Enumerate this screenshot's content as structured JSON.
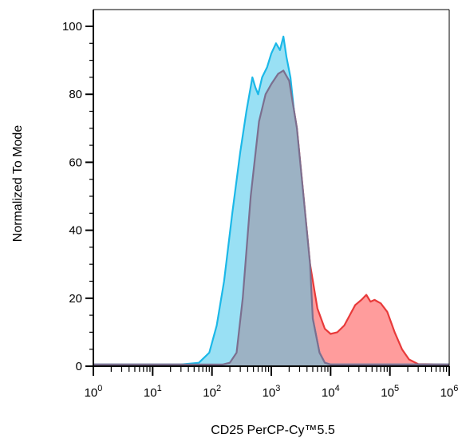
{
  "chart_data": {
    "type": "area",
    "title": "",
    "xlabel": "CD25 PerCP-Cy™5.5",
    "ylabel": "Normalized To Mode",
    "x_scale": "log",
    "xlim": [
      1,
      1000000
    ],
    "ylim": [
      0,
      100
    ],
    "y_ticks": [
      0,
      20,
      40,
      60,
      80,
      100
    ],
    "x_ticks": [
      {
        "base": "10",
        "exp": "0",
        "value": 1
      },
      {
        "base": "10",
        "exp": "1",
        "value": 10
      },
      {
        "base": "10",
        "exp": "2",
        "value": 100
      },
      {
        "base": "10",
        "exp": "3",
        "value": 1000
      },
      {
        "base": "10",
        "exp": "4",
        "value": 10000
      },
      {
        "base": "10",
        "exp": "5",
        "value": 100000
      },
      {
        "base": "10",
        "exp": "6",
        "value": 1000000
      }
    ],
    "grid": false,
    "legend": "none",
    "series": [
      {
        "color_fill": "#ff9c9c",
        "color_line": "#e83a3a",
        "points": [
          [
            1,
            0.5
          ],
          [
            100,
            0.5
          ],
          [
            150,
            0.5
          ],
          [
            200,
            1
          ],
          [
            260,
            4
          ],
          [
            330,
            20
          ],
          [
            450,
            50
          ],
          [
            620,
            72
          ],
          [
            800,
            80
          ],
          [
            1000,
            83
          ],
          [
            1300,
            86
          ],
          [
            1600,
            87
          ],
          [
            2000,
            84
          ],
          [
            2700,
            70
          ],
          [
            3500,
            50
          ],
          [
            4500,
            30
          ],
          [
            6000,
            17
          ],
          [
            8000,
            11
          ],
          [
            10000,
            9.5
          ],
          [
            13000,
            10
          ],
          [
            17000,
            12
          ],
          [
            21000,
            15
          ],
          [
            26000,
            18
          ],
          [
            33000,
            19.5
          ],
          [
            40000,
            21
          ],
          [
            47000,
            19
          ],
          [
            55000,
            19.5
          ],
          [
            70000,
            18.5
          ],
          [
            90000,
            16
          ],
          [
            120000,
            10
          ],
          [
            160000,
            5
          ],
          [
            210000,
            2
          ],
          [
            300000,
            0.6
          ],
          [
            1000000,
            0.5
          ]
        ]
      },
      {
        "color_fill": "#99e0f4",
        "color_line": "#1bb8e8",
        "points": [
          [
            1,
            0.5
          ],
          [
            30,
            0.5
          ],
          [
            60,
            1
          ],
          [
            90,
            4
          ],
          [
            120,
            12
          ],
          [
            160,
            25
          ],
          [
            220,
            45
          ],
          [
            300,
            63
          ],
          [
            380,
            75
          ],
          [
            480,
            85
          ],
          [
            540,
            82
          ],
          [
            600,
            80
          ],
          [
            700,
            85
          ],
          [
            850,
            88
          ],
          [
            1000,
            92
          ],
          [
            1200,
            95
          ],
          [
            1400,
            93
          ],
          [
            1600,
            97
          ],
          [
            1800,
            91
          ],
          [
            2100,
            85
          ],
          [
            2600,
            70
          ],
          [
            3200,
            50
          ],
          [
            4000,
            30
          ],
          [
            5000,
            14
          ],
          [
            6500,
            4
          ],
          [
            8000,
            1
          ],
          [
            10000,
            0.5
          ],
          [
            1000000,
            0.5
          ]
        ]
      },
      {
        "color_fill": "#9cb2c4",
        "color_line": "#7b6f8f",
        "points": [
          [
            1,
            0.5
          ],
          [
            100,
            0.5
          ],
          [
            150,
            0.5
          ],
          [
            200,
            1
          ],
          [
            260,
            4
          ],
          [
            330,
            20
          ],
          [
            450,
            50
          ],
          [
            620,
            72
          ],
          [
            800,
            80
          ],
          [
            1000,
            83
          ],
          [
            1300,
            86
          ],
          [
            1600,
            87
          ],
          [
            2000,
            84
          ],
          [
            2700,
            70
          ],
          [
            3500,
            50
          ],
          [
            4500,
            30
          ],
          [
            5000,
            14
          ],
          [
            6500,
            4
          ],
          [
            8000,
            1
          ],
          [
            10000,
            0.5
          ],
          [
            1000000,
            0.5
          ]
        ]
      }
    ]
  }
}
